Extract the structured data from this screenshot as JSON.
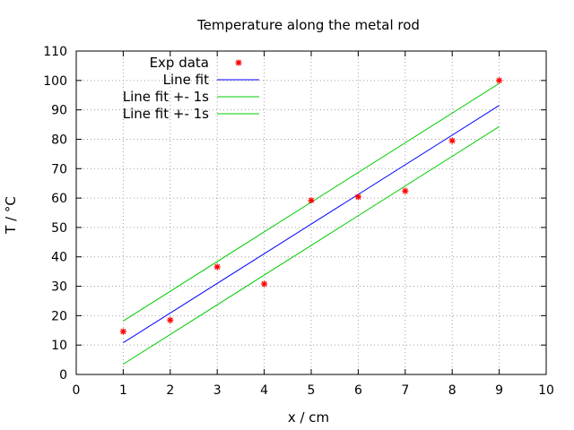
{
  "chart_data": {
    "type": "scatter",
    "title": "Temperature along the metal rod",
    "xlabel": "x / cm",
    "ylabel": "T / °C",
    "xlim": [
      0,
      10
    ],
    "ylim": [
      0,
      110
    ],
    "xticks": [
      "0",
      "1",
      "2",
      "3",
      "4",
      "5",
      "6",
      "7",
      "8",
      "9",
      "10"
    ],
    "yticks": [
      "0",
      "10",
      "20",
      "30",
      "40",
      "50",
      "60",
      "70",
      "80",
      "90",
      "100",
      "110"
    ],
    "grid": true,
    "legend_position": "top-left",
    "series": [
      {
        "name": "Exp data",
        "kind": "points",
        "marker": "star",
        "color": "#ff0000",
        "x": [
          1,
          2,
          3,
          4,
          5,
          6,
          7,
          8,
          9
        ],
        "y": [
          14.6,
          18.5,
          36.6,
          30.8,
          59.2,
          60.4,
          62.4,
          79.5,
          100
        ]
      },
      {
        "name": "Line fit",
        "kind": "line",
        "color": "#0000ff",
        "x": [
          1,
          9
        ],
        "y": [
          10.8,
          91.5
        ]
      },
      {
        "name": "Line fit +- 1s",
        "kind": "line",
        "color": "#00cc00",
        "x": [
          1,
          9
        ],
        "y": [
          18.2,
          99.0
        ]
      },
      {
        "name": "Line fit +- 1s",
        "kind": "line",
        "color": "#00cc00",
        "x": [
          1,
          9
        ],
        "y": [
          3.5,
          84.3
        ]
      }
    ]
  }
}
